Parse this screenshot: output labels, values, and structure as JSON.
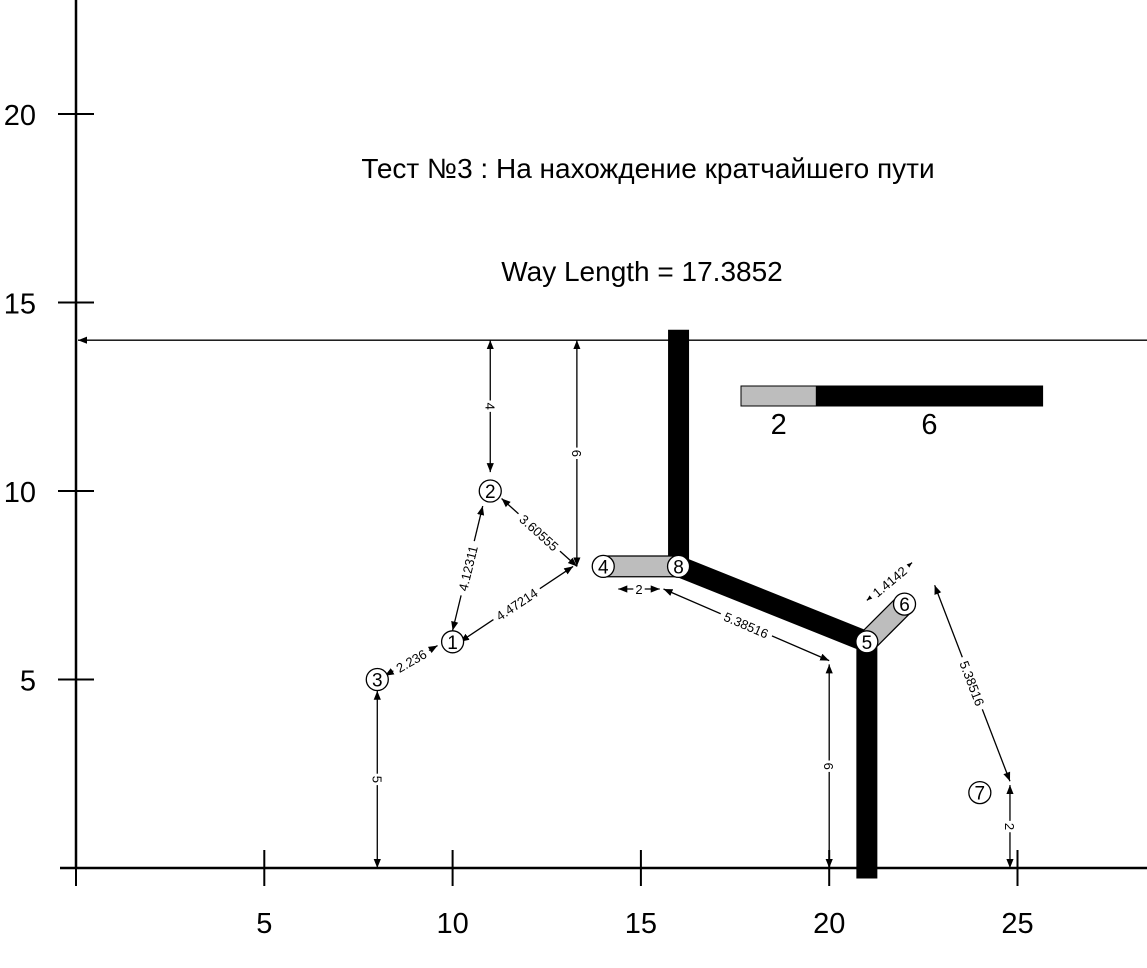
{
  "diagram": {
    "title": "Тест №3 : На нахождение кратчайшего пути",
    "result": "Way Length = 17.3852",
    "x_ticks": [
      {
        "value": 5,
        "label": "5"
      },
      {
        "value": 10,
        "label": "10"
      },
      {
        "value": 15,
        "label": "15"
      },
      {
        "value": 20,
        "label": "20"
      },
      {
        "value": 25,
        "label": "25"
      }
    ],
    "y_ticks": [
      {
        "value": 5,
        "label": "5"
      },
      {
        "value": 10,
        "label": "10"
      },
      {
        "value": 15,
        "label": "15"
      },
      {
        "value": 20,
        "label": "20"
      }
    ],
    "nodes": [
      {
        "id": "1",
        "label": "1",
        "x": 10,
        "y": 6
      },
      {
        "id": "2",
        "label": "2",
        "x": 11,
        "y": 10
      },
      {
        "id": "3",
        "label": "3",
        "x": 8,
        "y": 5
      },
      {
        "id": "4",
        "label": "4",
        "x": 14,
        "y": 8
      },
      {
        "id": "5",
        "label": "5",
        "x": 21,
        "y": 6
      },
      {
        "id": "6",
        "label": "6",
        "x": 22,
        "y": 7
      },
      {
        "id": "7",
        "label": "7",
        "x": 24,
        "y": 2
      },
      {
        "id": "8",
        "label": "8",
        "x": 16,
        "y": 8
      }
    ],
    "path_segments": [
      {
        "from": [
          16,
          14
        ],
        "to": [
          16,
          8
        ],
        "style": "black"
      },
      {
        "from": [
          16,
          8
        ],
        "to": [
          21,
          6
        ],
        "style": "black"
      },
      {
        "from": [
          21,
          6
        ],
        "to": [
          21,
          0
        ],
        "style": "black"
      },
      {
        "from": [
          14,
          8
        ],
        "to": [
          16,
          8
        ],
        "style": "gray"
      },
      {
        "from": [
          21,
          6
        ],
        "to": [
          22,
          7
        ],
        "style": "gray"
      }
    ],
    "dimensions": [
      {
        "label": "4",
        "from": [
          11,
          14
        ],
        "to": [
          11,
          10.5
        ]
      },
      {
        "label": "6",
        "from": [
          13.3,
          14
        ],
        "to": [
          13.3,
          8
        ]
      },
      {
        "label": "3.60555",
        "from": [
          11.3,
          9.8
        ],
        "to": [
          13.3,
          8
        ]
      },
      {
        "label": "4.12311",
        "from": [
          10.8,
          9.6
        ],
        "to": [
          10,
          6.3
        ]
      },
      {
        "label": "4.47214",
        "from": [
          10.2,
          6
        ],
        "to": [
          13.2,
          8
        ]
      },
      {
        "label": "2.236",
        "from": [
          8.2,
          5.1
        ],
        "to": [
          9.6,
          5.9
        ]
      },
      {
        "label": "5",
        "from": [
          8,
          4.7
        ],
        "to": [
          8,
          0
        ]
      },
      {
        "label": "2",
        "from": [
          14.4,
          7.4
        ],
        "to": [
          15.5,
          7.4
        ]
      },
      {
        "label": "5.38516",
        "from": [
          15.6,
          7.4
        ],
        "to": [
          20,
          5.5
        ]
      },
      {
        "label": "6",
        "from": [
          20,
          5.4
        ],
        "to": [
          20,
          0
        ]
      },
      {
        "label": "1.4142",
        "from": [
          21,
          7.1
        ],
        "to": [
          22.2,
          8.1
        ]
      },
      {
        "label": "5.38516",
        "from": [
          22.8,
          7.5
        ],
        "to": [
          24.8,
          2.3
        ]
      },
      {
        "label": "2",
        "from": [
          24.8,
          2.2
        ],
        "to": [
          24.8,
          0
        ]
      }
    ],
    "legend": [
      {
        "label": "2",
        "color": "#bdbdbd",
        "length": 2
      },
      {
        "label": "6",
        "color": "#000000",
        "length": 6
      }
    ],
    "colors": {
      "path": "#000000",
      "gray_path": "#bdbdbd",
      "axis": "#000000",
      "background": "#ffffff"
    }
  }
}
